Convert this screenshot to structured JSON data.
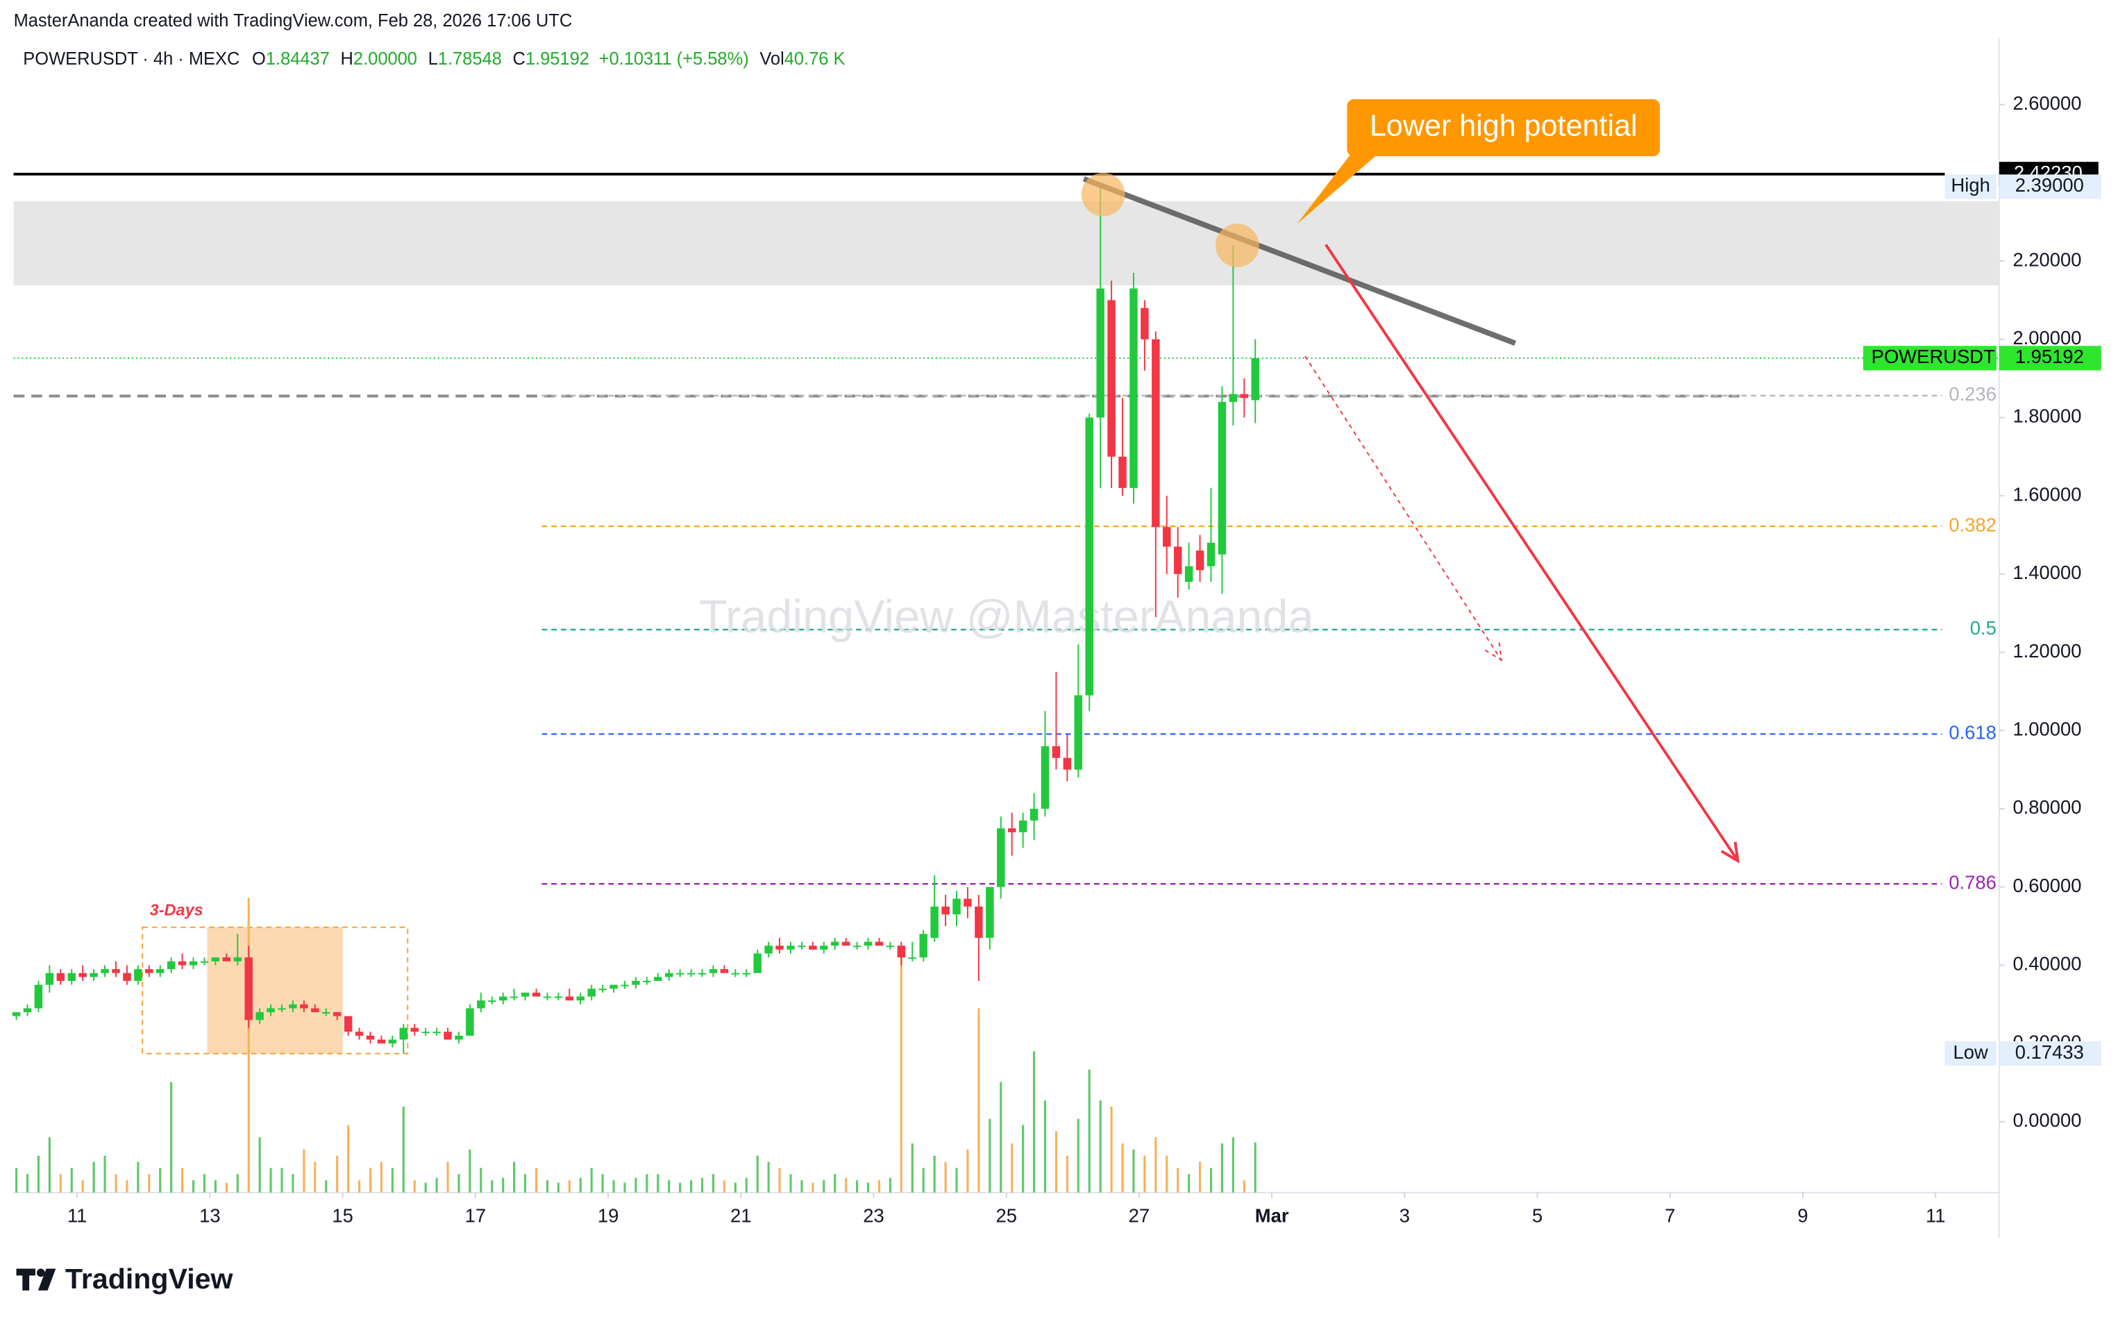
{
  "chart_data": {
    "type": "candlestick",
    "header": "MasterAnanda created with TradingView.com, Feb 28, 2026 17:06 UTC",
    "legend": {
      "symbol": "POWERUSDT · 4h · MEXC",
      "fields": [
        {
          "key": "O",
          "value": "1.84437"
        },
        {
          "key": "H",
          "value": "2.00000"
        },
        {
          "key": "L",
          "value": "1.78548"
        },
        {
          "key": "C",
          "value": "1.95192"
        }
      ],
      "change": "+0.10311 (+5.58%)",
      "volume_key": "Vol",
      "volume_value": "40.76 K",
      "color": "#22ab2c"
    },
    "watermark": "TradingView @MasterAnanda",
    "logo": "TradingView",
    "x": [
      216,
      220,
      224,
      228,
      232,
      236,
      240,
      244,
      248,
      252,
      256,
      260,
      264,
      268,
      272,
      276,
      280,
      284,
      288,
      292,
      296,
      300,
      304,
      308,
      312,
      316,
      320,
      324,
      328,
      332,
      336,
      340,
      344,
      348,
      352,
      356,
      360,
      364,
      368,
      372,
      376,
      380,
      384,
      388,
      392,
      396,
      400,
      404,
      408,
      412,
      416,
      420,
      424,
      428,
      432,
      436,
      440,
      444,
      448,
      452,
      456,
      460,
      464,
      468,
      472,
      476,
      480,
      484,
      488,
      492,
      496,
      500,
      504,
      508,
      512,
      516,
      520,
      524,
      528,
      532,
      536,
      540,
      544,
      548,
      552,
      556,
      560,
      564,
      568,
      572,
      576,
      580,
      584,
      588,
      592,
      596,
      600,
      604,
      608,
      612,
      616,
      620,
      624,
      628,
      632,
      636,
      640,
      644,
      648,
      652,
      656,
      660,
      664
    ],
    "open": [
      0.27,
      0.28,
      0.29,
      0.35,
      0.38,
      0.36,
      0.38,
      0.37,
      0.38,
      0.39,
      0.38,
      0.36,
      0.39,
      0.38,
      0.39,
      0.41,
      0.4,
      0.41,
      0.41,
      0.42,
      0.41,
      0.42,
      0.26,
      0.28,
      0.29,
      0.29,
      0.3,
      0.29,
      0.28,
      0.28,
      0.27,
      0.23,
      0.22,
      0.21,
      0.2,
      0.21,
      0.24,
      0.23,
      0.23,
      0.23,
      0.21,
      0.22,
      0.29,
      0.31,
      0.31,
      0.32,
      0.32,
      0.33,
      0.32,
      0.32,
      0.32,
      0.31,
      0.32,
      0.34,
      0.34,
      0.35,
      0.35,
      0.36,
      0.36,
      0.37,
      0.38,
      0.38,
      0.38,
      0.38,
      0.39,
      0.38,
      0.38,
      0.38,
      0.43,
      0.45,
      0.44,
      0.45,
      0.45,
      0.44,
      0.45,
      0.46,
      0.45,
      0.45,
      0.46,
      0.45,
      0.45,
      0.42,
      0.42,
      0.47,
      0.55,
      0.53,
      0.57,
      0.55,
      0.47,
      0.6,
      0.75,
      0.74,
      0.77,
      0.8,
      0.96,
      0.93,
      0.9,
      1.09,
      1.8,
      2.1,
      1.7,
      1.62,
      2.08,
      2.0,
      1.52,
      1.47,
      1.38,
      1.46,
      1.42,
      1.45,
      1.84,
      1.86,
      1.84437
    ],
    "high": [
      0.28,
      0.3,
      0.36,
      0.4,
      0.39,
      0.39,
      0.4,
      0.39,
      0.4,
      0.41,
      0.4,
      0.4,
      0.4,
      0.4,
      0.42,
      0.43,
      0.42,
      0.42,
      0.42,
      0.43,
      0.48,
      0.45,
      0.29,
      0.3,
      0.3,
      0.31,
      0.31,
      0.3,
      0.29,
      0.28,
      0.27,
      0.24,
      0.23,
      0.22,
      0.22,
      0.25,
      0.25,
      0.24,
      0.24,
      0.24,
      0.23,
      0.3,
      0.33,
      0.32,
      0.33,
      0.34,
      0.33,
      0.34,
      0.33,
      0.33,
      0.34,
      0.33,
      0.35,
      0.35,
      0.35,
      0.36,
      0.37,
      0.37,
      0.38,
      0.39,
      0.39,
      0.39,
      0.39,
      0.4,
      0.4,
      0.39,
      0.39,
      0.44,
      0.46,
      0.47,
      0.46,
      0.46,
      0.46,
      0.46,
      0.47,
      0.47,
      0.46,
      0.47,
      0.47,
      0.46,
      0.46,
      0.46,
      0.49,
      0.63,
      0.58,
      0.59,
      0.6,
      0.58,
      0.6,
      0.78,
      0.79,
      0.79,
      0.84,
      1.05,
      1.15,
      0.99,
      1.22,
      1.81,
      2.39,
      2.15,
      1.85,
      2.17,
      2.1,
      2.02,
      1.6,
      1.52,
      1.48,
      1.5,
      1.62,
      1.88,
      2.24,
      1.9,
      2.0
    ],
    "low": [
      0.26,
      0.27,
      0.28,
      0.33,
      0.35,
      0.35,
      0.36,
      0.36,
      0.37,
      0.37,
      0.35,
      0.35,
      0.37,
      0.37,
      0.38,
      0.39,
      0.39,
      0.4,
      0.4,
      0.41,
      0.4,
      0.24,
      0.25,
      0.27,
      0.28,
      0.28,
      0.28,
      0.28,
      0.27,
      0.26,
      0.22,
      0.21,
      0.2,
      0.2,
      0.19,
      0.17433,
      0.22,
      0.22,
      0.22,
      0.21,
      0.2,
      0.22,
      0.28,
      0.3,
      0.3,
      0.31,
      0.31,
      0.32,
      0.31,
      0.31,
      0.31,
      0.3,
      0.31,
      0.33,
      0.33,
      0.34,
      0.34,
      0.35,
      0.36,
      0.36,
      0.37,
      0.37,
      0.37,
      0.37,
      0.38,
      0.37,
      0.37,
      0.38,
      0.42,
      0.43,
      0.43,
      0.44,
      0.44,
      0.43,
      0.44,
      0.45,
      0.44,
      0.44,
      0.45,
      0.44,
      0.4,
      0.41,
      0.41,
      0.46,
      0.5,
      0.5,
      0.52,
      0.36,
      0.44,
      0.57,
      0.68,
      0.7,
      0.72,
      0.78,
      0.9,
      0.87,
      0.88,
      1.05,
      1.62,
      1.62,
      1.6,
      1.58,
      1.92,
      1.29,
      1.4,
      1.34,
      1.36,
      1.38,
      1.38,
      1.35,
      1.78,
      1.8,
      1.78548
    ],
    "close": [
      0.28,
      0.29,
      0.35,
      0.38,
      0.36,
      0.38,
      0.37,
      0.38,
      0.39,
      0.38,
      0.36,
      0.39,
      0.38,
      0.39,
      0.41,
      0.4,
      0.41,
      0.41,
      0.42,
      0.41,
      0.42,
      0.26,
      0.28,
      0.29,
      0.29,
      0.3,
      0.29,
      0.28,
      0.28,
      0.27,
      0.23,
      0.22,
      0.21,
      0.2,
      0.21,
      0.24,
      0.23,
      0.23,
      0.23,
      0.21,
      0.22,
      0.29,
      0.31,
      0.31,
      0.32,
      0.32,
      0.33,
      0.32,
      0.32,
      0.32,
      0.31,
      0.32,
      0.34,
      0.34,
      0.35,
      0.35,
      0.36,
      0.36,
      0.37,
      0.38,
      0.38,
      0.38,
      0.38,
      0.39,
      0.38,
      0.38,
      0.38,
      0.43,
      0.45,
      0.44,
      0.45,
      0.45,
      0.44,
      0.45,
      0.46,
      0.45,
      0.45,
      0.46,
      0.45,
      0.45,
      0.42,
      0.42,
      0.48,
      0.55,
      0.53,
      0.57,
      0.55,
      0.47,
      0.6,
      0.75,
      0.74,
      0.77,
      0.8,
      0.96,
      0.93,
      0.9,
      1.09,
      1.8,
      2.13,
      1.7,
      1.62,
      2.13,
      2.0,
      1.52,
      1.47,
      1.4,
      1.42,
      1.41,
      1.48,
      1.84,
      1.86,
      1.85,
      1.95192
    ],
    "volume": [
      20,
      15,
      30,
      45,
      15,
      20,
      10,
      25,
      30,
      15,
      10,
      25,
      15,
      20,
      90,
      20,
      10,
      15,
      10,
      8,
      15,
      240,
      45,
      20,
      20,
      15,
      35,
      25,
      10,
      30,
      55,
      10,
      20,
      25,
      20,
      70,
      10,
      8,
      12,
      25,
      15,
      35,
      20,
      10,
      12,
      25,
      15,
      20,
      10,
      8,
      10,
      12,
      20,
      15,
      10,
      8,
      12,
      15,
      15,
      10,
      8,
      10,
      12,
      15,
      10,
      8,
      12,
      30,
      25,
      20,
      15,
      10,
      8,
      10,
      15,
      12,
      10,
      8,
      10,
      12,
      200,
      40,
      20,
      30,
      25,
      20,
      35,
      150,
      60,
      90,
      40,
      55,
      115,
      75,
      50,
      30,
      60,
      100,
      75,
      70,
      40,
      35,
      30,
      45,
      30,
      20,
      15,
      25,
      20,
      40,
      45,
      10,
      40.76
    ],
    "up_color": "#22c93d",
    "down_color": "#f23645",
    "volume_up_color": "#5fc86a",
    "volume_down_color": "#f9b15a",
    "xlim": [
      217,
      935
    ],
    "xticks": [
      {
        "value": 240,
        "label": "11"
      },
      {
        "value": 288,
        "label": "13"
      },
      {
        "value": 336,
        "label": "15"
      },
      {
        "value": 384,
        "label": "17"
      },
      {
        "value": 432,
        "label": "19"
      },
      {
        "value": 480,
        "label": "21"
      },
      {
        "value": 528,
        "label": "23"
      },
      {
        "value": 576,
        "label": "25"
      },
      {
        "value": 624,
        "label": "27"
      },
      {
        "value": 672,
        "label": "Mar"
      },
      {
        "value": 720,
        "label": "3"
      },
      {
        "value": 768,
        "label": "5"
      },
      {
        "value": 816,
        "label": "7"
      },
      {
        "value": 864,
        "label": "9"
      },
      {
        "value": 912,
        "label": "11"
      }
    ],
    "ylim": [
      -0.181,
      2.77
    ],
    "yticks": [
      {
        "value": 2.6,
        "label": "2.60000"
      },
      {
        "value": 2.2,
        "label": "2.20000"
      },
      {
        "value": 2.0,
        "label": "2.00000"
      },
      {
        "value": 1.8,
        "label": "1.80000"
      },
      {
        "value": 1.6,
        "label": "1.60000"
      },
      {
        "value": 1.4,
        "label": "1.40000"
      },
      {
        "value": 1.2,
        "label": "1.20000"
      },
      {
        "value": 1.0,
        "label": "1.00000"
      },
      {
        "value": 0.8,
        "label": "0.80000"
      },
      {
        "value": 0.6,
        "label": "0.60000"
      },
      {
        "value": 0.4,
        "label": "0.40000"
      },
      {
        "value": 0.2,
        "label": "0.20000"
      },
      {
        "value": 0,
        "label": "0.00000"
      }
    ],
    "y2lim": [
      0,
      940
    ],
    "last_price": {
      "name": "POWERUSDT",
      "value": 1.95192,
      "color": "#2ee62e"
    },
    "high_mark": {
      "name": "High",
      "value": 2.39,
      "value_label": "2.39000"
    },
    "low_mark": {
      "name": "Low",
      "value": 0.17433
    },
    "high_line": {
      "value": 2.4223,
      "value_label": "2.42230",
      "color": "#000000"
    },
    "resistance_zone": {
      "y": [
        2.138,
        2.353
      ],
      "color": "#e6e6e6"
    },
    "mid_line": {
      "value": 1.855,
      "x_end": 841.5,
      "color": "#8a8a8a"
    },
    "fib": {
      "x_start": 408,
      "levels": [
        {
          "ratio": 0.236,
          "price": 1.856,
          "color": "#b2b5be"
        },
        {
          "ratio": 0.382,
          "price": 1.522,
          "color": "#f5a623"
        },
        {
          "ratio": 0.5,
          "price": 1.258,
          "color": "#22ab94"
        },
        {
          "ratio": 0.618,
          "price": 0.991,
          "color": "#2962ff"
        },
        {
          "ratio": 0.786,
          "price": 0.608,
          "color": "#9c27b0"
        }
      ]
    },
    "trendline": {
      "x": [
        604,
        760
      ],
      "y": [
        2.41,
        1.99
      ],
      "color": "#555555"
    },
    "circles": {
      "x": [
        611,
        659.5
      ],
      "y": [
        2.37,
        2.24
      ],
      "color": "#f7b75e"
    },
    "arrow": {
      "x": [
        691.5,
        840.5
      ],
      "y": [
        2.242,
        0.667
      ],
      "color": "#f23645"
    },
    "dashed_arrow": {
      "x": [
        684,
        755
      ],
      "y": [
        1.957,
        1.18
      ],
      "color": "#f23645"
    },
    "callout": {
      "text": "Lower high potential",
      "x": 681,
      "y": 2.294,
      "color": "#ff9800"
    },
    "range_box": {
      "text": "3-Days",
      "x": [
        263.6,
        359.5
      ],
      "y": [
        0.174,
        0.497
      ],
      "fill_x": [
        287,
        336
      ],
      "color": "#f7a13a"
    }
  }
}
